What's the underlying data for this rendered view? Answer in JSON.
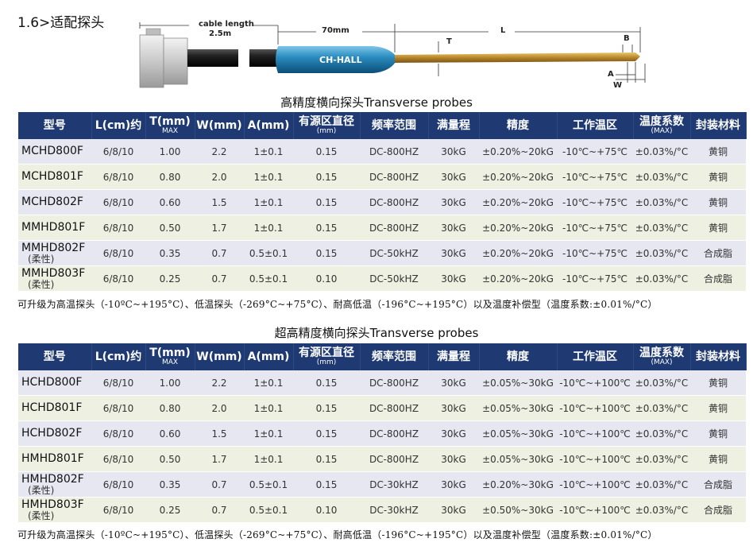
{
  "section_title": "1.6>适配探头",
  "diagram": {
    "cable_label_1": "cable length",
    "cable_label_2": "2.5m",
    "dim_70": "70mm",
    "brand": "CH-HALL",
    "dim_L": "L",
    "dim_T": "T",
    "dim_B": "B",
    "dim_A": "A",
    "dim_W": "W"
  },
  "columns": [
    {
      "main": "型号",
      "sub": ""
    },
    {
      "main": "L(cm)约",
      "sub": ""
    },
    {
      "main": "T(mm)",
      "sub": "MAX"
    },
    {
      "main": "W(mm)",
      "sub": ""
    },
    {
      "main": "A(mm)",
      "sub": ""
    },
    {
      "main": "有源区直径",
      "sub": "(mm)"
    },
    {
      "main": "频率范围",
      "sub": ""
    },
    {
      "main": "满量程",
      "sub": ""
    },
    {
      "main": "精度",
      "sub": ""
    },
    {
      "main": "工作温区",
      "sub": ""
    },
    {
      "main": "温度系数",
      "sub": "(MAX)"
    },
    {
      "main": "封装材料",
      "sub": ""
    }
  ],
  "table1": {
    "caption": "高精度横向探头Transverse probes",
    "rows": [
      {
        "model": "MCHD800F",
        "soft": "",
        "l": "6/8/10",
        "t": "1.00",
        "w": "2.2",
        "a": "1±0.1",
        "d": "0.15",
        "freq": "DC-800HZ",
        "range": "30kG",
        "acc": "±0.20%~20kG",
        "temp": "-10℃~+75℃",
        "coef": "±0.03%/°C",
        "mat": "黄铜"
      },
      {
        "model": "MCHD801F",
        "soft": "",
        "l": "6/8/10",
        "t": "0.80",
        "w": "2.0",
        "a": "1±0.1",
        "d": "0.15",
        "freq": "DC-800HZ",
        "range": "30kG",
        "acc": "±0.20%~20kG",
        "temp": "-10℃~+75℃",
        "coef": "±0.03%/°C",
        "mat": "黄铜"
      },
      {
        "model": "MCHD802F",
        "soft": "",
        "l": "6/8/10",
        "t": "0.60",
        "w": "1.5",
        "a": "1±0.1",
        "d": "0.15",
        "freq": "DC-800HZ",
        "range": "30kG",
        "acc": "±0.20%~20kG",
        "temp": "-10℃~+75℃",
        "coef": "±0.03%/°C",
        "mat": "黄铜"
      },
      {
        "model": "MMHD801F",
        "soft": "",
        "l": "6/8/10",
        "t": "0.50",
        "w": "1.7",
        "a": "1±0.1",
        "d": "0.15",
        "freq": "DC-800HZ",
        "range": "30kG",
        "acc": "±0.20%~20kG",
        "temp": "-10℃~+75℃",
        "coef": "±0.03%/°C",
        "mat": "黄铜"
      },
      {
        "model": "MMHD802F",
        "soft": "(柔性)",
        "l": "6/8/10",
        "t": "0.35",
        "w": "0.7",
        "a": "0.5±0.1",
        "d": "0.15",
        "freq": "DC-50kHZ",
        "range": "30kG",
        "acc": "±0.20%~20kG",
        "temp": "-10℃~+75℃",
        "coef": "±0.03%/°C",
        "mat": "合成脂"
      },
      {
        "model": "MMHD803F",
        "soft": "(柔性)",
        "l": "6/8/10",
        "t": "0.25",
        "w": "0.7",
        "a": "0.5±0.1",
        "d": "0.10",
        "freq": "DC-50kHZ",
        "range": "30kG",
        "acc": "±0.20%~20kG",
        "temp": "-10℃~+75℃",
        "coef": "±0.03%/°C",
        "mat": "合成脂"
      }
    ],
    "note": "可升级为高温探头（-10ºC~+195°C）、低温探头（-269°C~+75°C）、耐高低温（-196°C~+195°C）以及温度补偿型（温度系数:±0.01%/°C）"
  },
  "table2": {
    "caption": "超高精度横向探头Transverse probes",
    "rows": [
      {
        "model": "HCHD800F",
        "soft": "",
        "l": "6/8/10",
        "t": "1.00",
        "w": "2.2",
        "a": "1±0.1",
        "d": "0.15",
        "freq": "DC-800HZ",
        "range": "30kG",
        "acc": "±0.05%~30kG",
        "temp": "-10℃~+100℃",
        "coef": "±0.03%/°C",
        "mat": "黄铜"
      },
      {
        "model": "HCHD801F",
        "soft": "",
        "l": "6/8/10",
        "t": "0.80",
        "w": "2.0",
        "a": "1±0.1",
        "d": "0.15",
        "freq": "DC-800HZ",
        "range": "30kG",
        "acc": "±0.05%~30kG",
        "temp": "-10℃~+100℃",
        "coef": "±0.03%/°C",
        "mat": "黄铜"
      },
      {
        "model": "HCHD802F",
        "soft": "",
        "l": "6/8/10",
        "t": "0.60",
        "w": "1.5",
        "a": "1±0.1",
        "d": "0.15",
        "freq": "DC-800HZ",
        "range": "30kG",
        "acc": "±0.05%~30kG",
        "temp": "-10℃~+100℃",
        "coef": "±0.03%/°C",
        "mat": "黄铜"
      },
      {
        "model": "HMHD801F",
        "soft": "",
        "l": "6/8/10",
        "t": "0.50",
        "w": "1.7",
        "a": "1±0.1",
        "d": "0.15",
        "freq": "DC-800HZ",
        "range": "30kG",
        "acc": "±0.05%~30kG",
        "temp": "-10℃~+100℃",
        "coef": "±0.03%/°C",
        "mat": "黄铜"
      },
      {
        "model": "HMHD802F",
        "soft": "(柔性)",
        "l": "6/8/10",
        "t": "0.35",
        "w": "0.7",
        "a": "0.5±0.1",
        "d": "0.15",
        "freq": "DC-30kHZ",
        "range": "30kG",
        "acc": "±0.20%~30kG",
        "temp": "-10℃~+100℃",
        "coef": "±0.03%/°C",
        "mat": "合成脂"
      },
      {
        "model": "HMHD803F",
        "soft": "(柔性)",
        "l": "6/8/10",
        "t": "0.25",
        "w": "0.7",
        "a": "0.5±0.1",
        "d": "0.10",
        "freq": "DC-30kHZ",
        "range": "30kG",
        "acc": "±0.50%~30kG",
        "temp": "-10℃~+100℃",
        "coef": "±0.03%/°C",
        "mat": "合成脂"
      }
    ],
    "note": "可升级为高温探头（-10ºC~+195°C）、低温探头（-269°C~+75°C）、耐高低温（-196°C~+195°C）以及温度补偿型（温度系数:±0.01%/°C）"
  }
}
